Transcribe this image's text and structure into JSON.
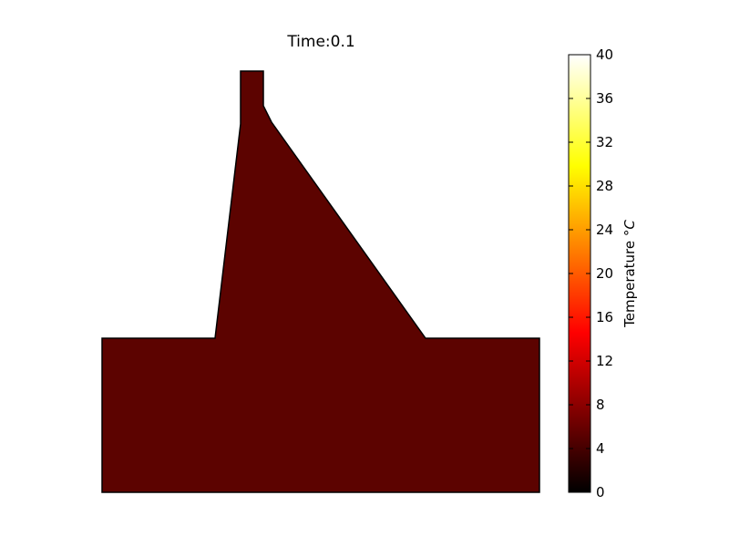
{
  "title": "Time:0.1",
  "chart_data": {
    "type": "heatmap",
    "title": "Time:0.1",
    "field_value_celsius": 6,
    "field_color": "#5c0300",
    "colormap": "hot",
    "colorbar": {
      "label_text": "Temperature ",
      "label_unit": "°C",
      "range": [
        0,
        40
      ],
      "ticks": [
        "0",
        "4",
        "8",
        "12",
        "16",
        "20",
        "24",
        "28",
        "32",
        "36",
        "40"
      ],
      "stops": [
        {
          "offset": 0.0,
          "color": "#000000"
        },
        {
          "offset": 0.365,
          "color": "#ff0000"
        },
        {
          "offset": 0.746,
          "color": "#ffff00"
        },
        {
          "offset": 1.0,
          "color": "#ffffff"
        }
      ]
    },
    "axes_visible": false,
    "grid": false
  }
}
